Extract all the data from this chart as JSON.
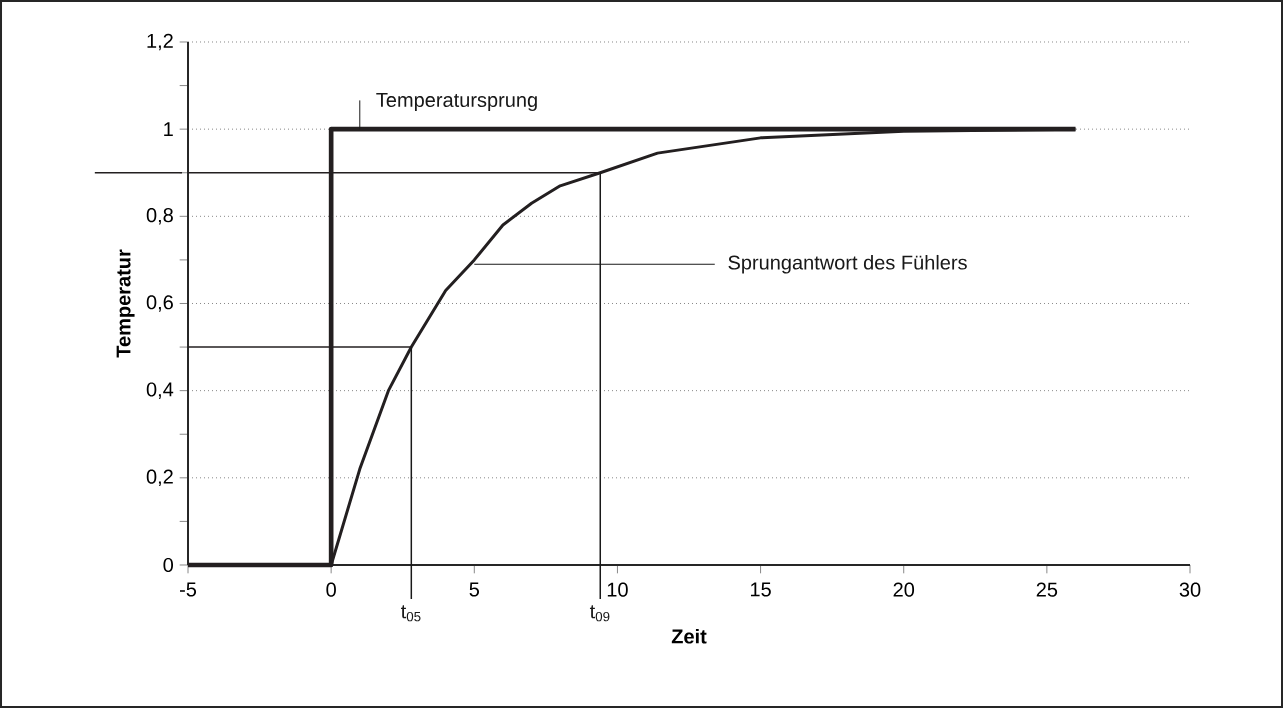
{
  "chart_data": {
    "type": "line",
    "xlabel": "Zeit",
    "ylabel": "Temperatur",
    "series": [
      {
        "color": "#231f20",
        "x": [
          -5,
          0,
          0,
          26
        ],
        "values": [
          0,
          0,
          1,
          1
        ]
      },
      {
        "color": "#231f20",
        "x": [
          0,
          1,
          2,
          2.8,
          4,
          5,
          6,
          7,
          8,
          9.4,
          11.4,
          15,
          20,
          26
        ],
        "values": [
          0,
          0.22,
          0.4,
          0.5,
          0.63,
          0.7,
          0.78,
          0.83,
          0.87,
          0.9,
          0.945,
          0.98,
          0.995,
          1
        ]
      },
      {
        "color": "#231f20",
        "x": [
          -5,
          2.8
        ],
        "values": [
          0.5,
          0.5
        ]
      },
      {
        "color": "#231f20",
        "x": [
          -5,
          9.4
        ],
        "values": [
          0.9,
          0.9
        ]
      }
    ],
    "xlim": [
      -5,
      30
    ],
    "xticks": [
      -5,
      0,
      5,
      10,
      15,
      20,
      25,
      30
    ],
    "ylim": [
      0,
      1.2
    ],
    "yticks": [
      0,
      {
        "value": 0.2,
        "label": "0,2"
      },
      {
        "value": 0.4,
        "label": "0,4"
      },
      {
        "value": 0.6,
        "label": "0,6"
      },
      {
        "value": 0.8,
        "label": "0,8"
      },
      1,
      {
        "value": 1.2,
        "label": "1,2"
      }
    ],
    "grid": "y",
    "marker": "none",
    "line_style": "solid",
    "annotations": [
      {
        "text": "Temperatursprung",
        "x": 1,
        "y": 1
      },
      {
        "text": "Sprungantwort des Fühlers",
        "x": 5,
        "y": 0.69
      },
      {
        "text": "t$_{05}$",
        "x": 2.8,
        "y": 0.5
      },
      {
        "text": "t$_{09}$",
        "x": 9.4,
        "y": 0.9
      }
    ]
  }
}
